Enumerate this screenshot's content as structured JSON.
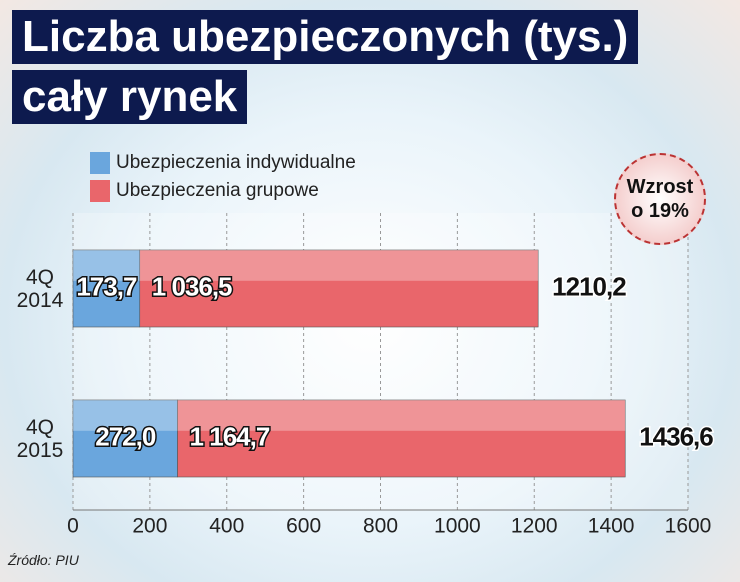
{
  "chart_data": {
    "type": "stacked-bar-horizontal",
    "title": "Liczba ubezpieczonych (tys.)",
    "subtitle": "cały rynek",
    "categories": [
      "4Q\n2014",
      "4Q\n2015"
    ],
    "series": [
      {
        "name": "Ubezpieczenia indywidualne",
        "color": "#6aa6dd",
        "values": [
          173.7,
          272.0
        ],
        "value_labels": [
          "173,7",
          "272,0"
        ]
      },
      {
        "name": "Ubezpieczenia grupowe",
        "color": "#e9666b",
        "values": [
          1036.5,
          1164.7
        ],
        "value_labels": [
          "1 036,5",
          "1 164,7"
        ]
      }
    ],
    "totals": {
      "values": [
        1210.2,
        1436.6
      ],
      "value_labels": [
        "1210,2",
        "1436,6"
      ]
    },
    "annotation": "Wzrost\no 19%",
    "source": "Źródło: PIU",
    "xlim": [
      0,
      1600
    ],
    "xticks": [
      0,
      200,
      400,
      600,
      800,
      1000,
      1200,
      1400,
      1600
    ],
    "grid": true
  }
}
